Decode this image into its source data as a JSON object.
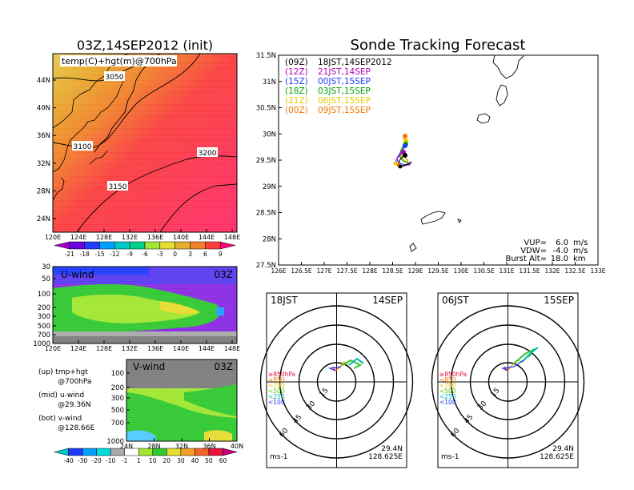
{
  "left_panel": {
    "title": "03Z,14SEP2012 (init)",
    "map_label": "temp(C)+hgt(m)@700hPa",
    "contours": [
      "3050",
      "3100",
      "3150",
      "3200"
    ],
    "lat_ticks": [
      "44N",
      "40N",
      "36N",
      "32N",
      "28N",
      "24N"
    ],
    "lon_ticks": [
      "120E",
      "124E",
      "128E",
      "132E",
      "136E",
      "140E",
      "144E",
      "148E"
    ],
    "temp_colorbar": [
      "-21",
      "-18",
      "-15",
      "-12",
      "-9",
      "-6",
      "-3",
      "0",
      "3",
      "6",
      "9"
    ],
    "temp_colors": [
      "#a000c8",
      "#6e00dc",
      "#1e3cff",
      "#00a0ff",
      "#00c8c8",
      "#00d28c",
      "#a0e632",
      "#e6dc32",
      "#e6af2d",
      "#f08228",
      "#fa3c3c",
      "#ff007a"
    ]
  },
  "u_panel": {
    "label": "U-wind",
    "time": "03Z",
    "y_ticks": [
      "30",
      "50",
      "100",
      "200",
      "300",
      "500",
      "700",
      "1000"
    ],
    "x_ticks": [
      "120E",
      "124E",
      "128E",
      "132E",
      "136E",
      "140E",
      "144E",
      "148E"
    ]
  },
  "v_panel": {
    "label": "V-wind",
    "time": "03Z",
    "y_ticks": [
      "100",
      "200",
      "300",
      "500",
      "700",
      "1000"
    ],
    "x_ticks": [
      "24N",
      "28N",
      "32N",
      "36N",
      "40N"
    ],
    "notes": [
      {
        "a": "(up)",
        "b": "tmp+hgt",
        "c": "@700hPa"
      },
      {
        "a": "(mid)",
        "b": "u-wind",
        "c": "@29.36N"
      },
      {
        "a": "(bot)",
        "b": "v-wind",
        "c": "@128.66E"
      }
    ]
  },
  "wind_colorbar": {
    "labels": [
      "-40",
      "-30",
      "-20",
      "-10",
      "-1",
      "1",
      "10",
      "20",
      "30",
      "40",
      "50",
      "60"
    ],
    "colors": [
      "#00c8c8",
      "#1e3cff",
      "#00a0ff",
      "#00dcdc",
      "#aaaaaa",
      "#ffffff",
      "#a0e632",
      "#32c832",
      "#e6dc32",
      "#f0a028",
      "#f06428",
      "#e6143c",
      "#c80078"
    ]
  },
  "tracking": {
    "title": "Sonde Tracking Forecast",
    "lat_ticks": [
      "31.5N",
      "31N",
      "30.5N",
      "30N",
      "29.5N",
      "29N",
      "28.5N",
      "28N",
      "27.5N"
    ],
    "lon_ticks": [
      "126E",
      "126.5E",
      "127E",
      "127.5E",
      "128E",
      "128.5E",
      "129E",
      "129.5E",
      "130E",
      "130.5E",
      "131E",
      "131.5E",
      "132E",
      "132.5E",
      "133E"
    ],
    "legend": [
      {
        "code": "(09Z)",
        "time": "18JST,14SEP2012",
        "color": "#000000"
      },
      {
        "code": "(12Z)",
        "time": "21JST,14SEP",
        "color": "#b400b4"
      },
      {
        "code": "(15Z)",
        "time": "00JST,15SEP",
        "color": "#1e3cff"
      },
      {
        "code": "(18Z)",
        "time": "03JST,15SEP",
        "color": "#00a000"
      },
      {
        "code": "(21Z)",
        "time": "06JST,15SEP",
        "color": "#e6c800"
      },
      {
        "code": "(00Z)",
        "time": "09JST,15SEP",
        "color": "#f07800"
      }
    ],
    "params": [
      {
        "label": "VUP=",
        "value": "6.0",
        "unit": "m/s"
      },
      {
        "label": "VDW=",
        "value": "-4.0",
        "unit": "m/s"
      },
      {
        "label": "Burst Alt=",
        "value": "18.0",
        "unit": "km"
      }
    ]
  },
  "hodographs": [
    {
      "jst": "18JST",
      "date": "14SEP",
      "lat": "29.4N",
      "lon": "128.625E",
      "unit": "ms-1",
      "rings": [
        "15",
        "30",
        "45",
        "60"
      ]
    },
    {
      "jst": "06JST",
      "date": "15SEP",
      "lat": "29.4N",
      "lon": "128.625E",
      "unit": "ms-1",
      "rings": [
        "15",
        "30",
        "45",
        "60"
      ]
    }
  ],
  "hodo_legend": [
    {
      "label": "≥850hPa",
      "color": "#e6143c"
    },
    {
      "label": "<850",
      "color": "#f07800"
    },
    {
      "label": "<700",
      "color": "#e6c800"
    },
    {
      "label": "<500",
      "color": "#50c800"
    },
    {
      "label": "<250",
      "color": "#00b4b4"
    },
    {
      "label": "<100",
      "color": "#1e3cff"
    }
  ]
}
